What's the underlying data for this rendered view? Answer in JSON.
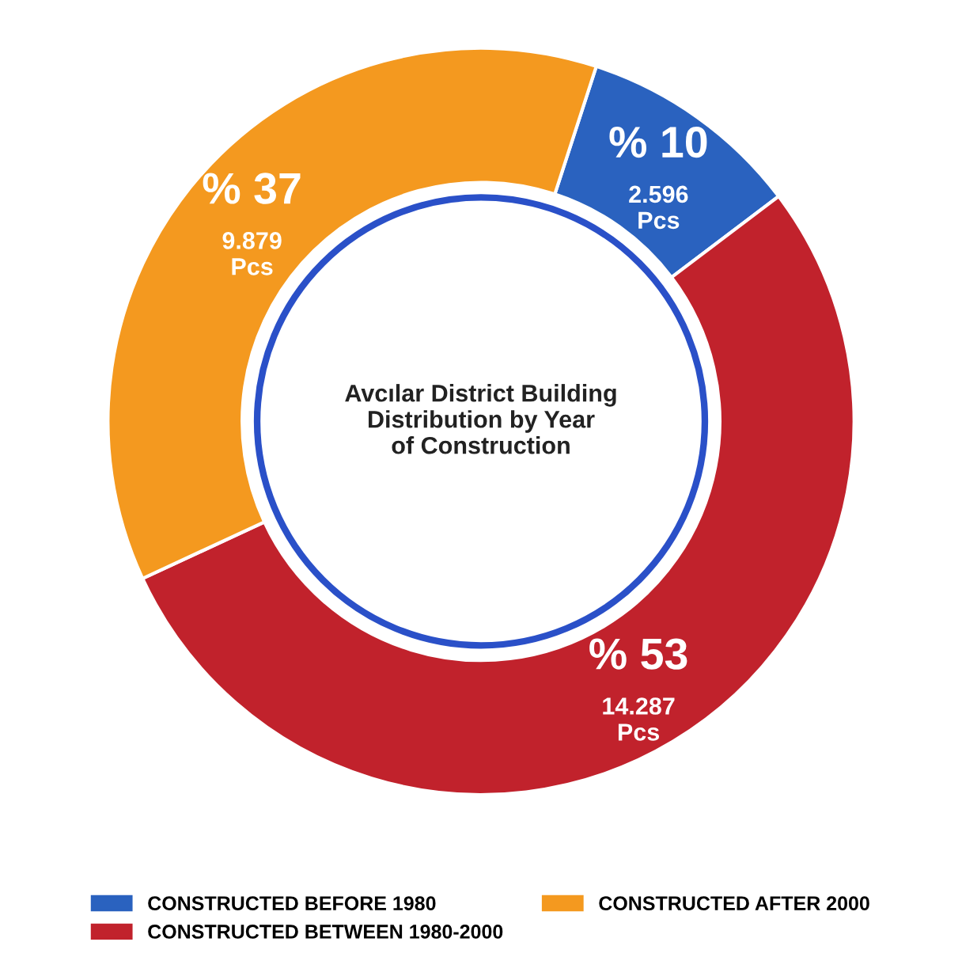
{
  "chart_data": {
    "type": "donut",
    "title": "Avcılar District Building\nDistribution by Year\nof Construction",
    "categories": [
      "CONSTRUCTED BEFORE 1980",
      "CONSTRUCTED BETWEEN 1980-2000",
      "CONSTRUCTED AFTER 2000"
    ],
    "values": [
      2596,
      14287,
      9879
    ],
    "colors": [
      "#2a62bf",
      "#c1222c",
      "#f4991f"
    ],
    "value_labels": [
      "% 10\n2.596\nPcs",
      "% 53\n14.287\nPcs",
      "% 37\n9.879\nPcs"
    ],
    "legend": "bottom"
  }
}
